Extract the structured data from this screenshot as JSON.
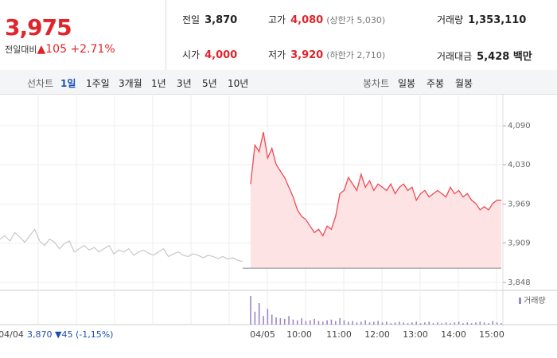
{
  "quote": {
    "price": "3,975",
    "change_label": "전일대비",
    "change": "▲105",
    "change_pct": "+2.71%"
  },
  "stats": [
    {
      "label": "전일",
      "value": "3,870"
    },
    {
      "label": "고가",
      "value": "4,080",
      "note": "(상한가 5,030)"
    },
    {
      "label": "거래량",
      "value": "1,353,110"
    },
    {
      "label": "시가",
      "value": "4,000"
    },
    {
      "label": "저가",
      "value": "3,920",
      "note": "(하한가 2,710)"
    },
    {
      "label": "거래대금",
      "value": "5,428 백만"
    }
  ],
  "tabs": {
    "line_label": "선차트",
    "line": [
      "1일",
      "1주일",
      "3개월",
      "1년",
      "3년",
      "5년",
      "10년"
    ],
    "candle_label": "봉차트",
    "candle": [
      "일봉",
      "주봉",
      "월봉"
    ]
  },
  "chart": {
    "yticks": [
      {
        "value": 4090,
        "label": "4,090"
      },
      {
        "value": 4030,
        "label": "4,030"
      },
      {
        "value": 3969,
        "label": "3,969"
      },
      {
        "value": 3909,
        "label": "3,909"
      },
      {
        "value": 3848,
        "label": "3,848"
      }
    ],
    "ylim": [
      3848,
      4090
    ],
    "prev_close": 3870,
    "prev_day": [
      3915,
      3920,
      3912,
      3925,
      3918,
      3910,
      3920,
      3930,
      3912,
      3905,
      3915,
      3910,
      3900,
      3908,
      3912,
      3895,
      3900,
      3905,
      3898,
      3902,
      3895,
      3900,
      3905,
      3892,
      3898,
      3895,
      3900,
      3890,
      3895,
      3898,
      3893,
      3890,
      3895,
      3900,
      3888,
      3892,
      3895,
      3890,
      3888,
      3892,
      3890,
      3886,
      3890,
      3888,
      3885,
      3888,
      3884,
      3886,
      3882,
      3880
    ],
    "today": [
      4000,
      4060,
      4050,
      4080,
      4040,
      4055,
      4030,
      4020,
      4010,
      3995,
      3980,
      3960,
      3950,
      3945,
      3935,
      3925,
      3930,
      3920,
      3935,
      3930,
      3950,
      3985,
      3990,
      4010,
      4000,
      3990,
      4015,
      3995,
      4005,
      3990,
      4000,
      3995,
      3990,
      4000,
      3985,
      3995,
      4000,
      3990,
      3995,
      3975,
      3985,
      3990,
      3980,
      3985,
      3990,
      3985,
      3980,
      3995,
      3985,
      3990,
      3980,
      3985,
      3975,
      3970,
      3960,
      3965,
      3960,
      3970,
      3975,
      3975
    ],
    "volume": [
      40,
      18,
      30,
      12,
      22,
      14,
      10,
      9,
      8,
      12,
      7,
      6,
      9,
      5,
      6,
      8,
      5,
      4,
      6,
      7,
      5,
      9,
      6,
      4,
      5,
      3,
      4,
      6,
      3,
      4,
      5,
      3,
      4,
      2,
      3,
      4,
      3,
      2,
      3,
      4,
      2,
      3,
      4,
      2,
      3,
      2,
      3,
      2,
      3,
      4,
      2,
      3,
      2,
      3,
      4,
      3,
      2,
      5,
      3,
      2
    ],
    "volume_legend": "거래량",
    "xlabels": [
      "04/04",
      "04/05",
      "10:00",
      "11:00",
      "12:00",
      "13:00",
      "14:00",
      "15:00"
    ],
    "prev_summary": "3,870 ▼45 (-1,15%)"
  }
}
